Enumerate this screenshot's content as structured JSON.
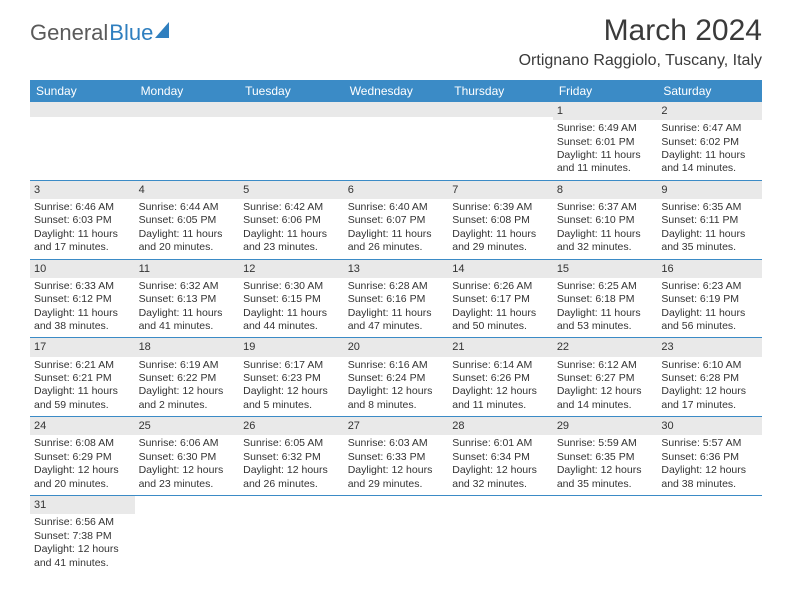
{
  "brand": {
    "part1": "General",
    "part2": "Blue"
  },
  "title": "March 2024",
  "location": "Ortignano Raggiolo, Tuscany, Italy",
  "colors": {
    "header_bg": "#3b8bc6",
    "header_text": "#ffffff",
    "daynum_bg": "#e9e9e9",
    "cell_border": "#3b8bc6",
    "text": "#333333",
    "brand_gray": "#5a5a5a",
    "brand_blue": "#2f7fbf",
    "page_bg": "#ffffff"
  },
  "weekdays": [
    "Sunday",
    "Monday",
    "Tuesday",
    "Wednesday",
    "Thursday",
    "Friday",
    "Saturday"
  ],
  "weeks": [
    [
      null,
      null,
      null,
      null,
      null,
      {
        "day": "1",
        "sunrise": "Sunrise: 6:49 AM",
        "sunset": "Sunset: 6:01 PM",
        "daylight": "Daylight: 11 hours and 11 minutes."
      },
      {
        "day": "2",
        "sunrise": "Sunrise: 6:47 AM",
        "sunset": "Sunset: 6:02 PM",
        "daylight": "Daylight: 11 hours and 14 minutes."
      }
    ],
    [
      {
        "day": "3",
        "sunrise": "Sunrise: 6:46 AM",
        "sunset": "Sunset: 6:03 PM",
        "daylight": "Daylight: 11 hours and 17 minutes."
      },
      {
        "day": "4",
        "sunrise": "Sunrise: 6:44 AM",
        "sunset": "Sunset: 6:05 PM",
        "daylight": "Daylight: 11 hours and 20 minutes."
      },
      {
        "day": "5",
        "sunrise": "Sunrise: 6:42 AM",
        "sunset": "Sunset: 6:06 PM",
        "daylight": "Daylight: 11 hours and 23 minutes."
      },
      {
        "day": "6",
        "sunrise": "Sunrise: 6:40 AM",
        "sunset": "Sunset: 6:07 PM",
        "daylight": "Daylight: 11 hours and 26 minutes."
      },
      {
        "day": "7",
        "sunrise": "Sunrise: 6:39 AM",
        "sunset": "Sunset: 6:08 PM",
        "daylight": "Daylight: 11 hours and 29 minutes."
      },
      {
        "day": "8",
        "sunrise": "Sunrise: 6:37 AM",
        "sunset": "Sunset: 6:10 PM",
        "daylight": "Daylight: 11 hours and 32 minutes."
      },
      {
        "day": "9",
        "sunrise": "Sunrise: 6:35 AM",
        "sunset": "Sunset: 6:11 PM",
        "daylight": "Daylight: 11 hours and 35 minutes."
      }
    ],
    [
      {
        "day": "10",
        "sunrise": "Sunrise: 6:33 AM",
        "sunset": "Sunset: 6:12 PM",
        "daylight": "Daylight: 11 hours and 38 minutes."
      },
      {
        "day": "11",
        "sunrise": "Sunrise: 6:32 AM",
        "sunset": "Sunset: 6:13 PM",
        "daylight": "Daylight: 11 hours and 41 minutes."
      },
      {
        "day": "12",
        "sunrise": "Sunrise: 6:30 AM",
        "sunset": "Sunset: 6:15 PM",
        "daylight": "Daylight: 11 hours and 44 minutes."
      },
      {
        "day": "13",
        "sunrise": "Sunrise: 6:28 AM",
        "sunset": "Sunset: 6:16 PM",
        "daylight": "Daylight: 11 hours and 47 minutes."
      },
      {
        "day": "14",
        "sunrise": "Sunrise: 6:26 AM",
        "sunset": "Sunset: 6:17 PM",
        "daylight": "Daylight: 11 hours and 50 minutes."
      },
      {
        "day": "15",
        "sunrise": "Sunrise: 6:25 AM",
        "sunset": "Sunset: 6:18 PM",
        "daylight": "Daylight: 11 hours and 53 minutes."
      },
      {
        "day": "16",
        "sunrise": "Sunrise: 6:23 AM",
        "sunset": "Sunset: 6:19 PM",
        "daylight": "Daylight: 11 hours and 56 minutes."
      }
    ],
    [
      {
        "day": "17",
        "sunrise": "Sunrise: 6:21 AM",
        "sunset": "Sunset: 6:21 PM",
        "daylight": "Daylight: 11 hours and 59 minutes."
      },
      {
        "day": "18",
        "sunrise": "Sunrise: 6:19 AM",
        "sunset": "Sunset: 6:22 PM",
        "daylight": "Daylight: 12 hours and 2 minutes."
      },
      {
        "day": "19",
        "sunrise": "Sunrise: 6:17 AM",
        "sunset": "Sunset: 6:23 PM",
        "daylight": "Daylight: 12 hours and 5 minutes."
      },
      {
        "day": "20",
        "sunrise": "Sunrise: 6:16 AM",
        "sunset": "Sunset: 6:24 PM",
        "daylight": "Daylight: 12 hours and 8 minutes."
      },
      {
        "day": "21",
        "sunrise": "Sunrise: 6:14 AM",
        "sunset": "Sunset: 6:26 PM",
        "daylight": "Daylight: 12 hours and 11 minutes."
      },
      {
        "day": "22",
        "sunrise": "Sunrise: 6:12 AM",
        "sunset": "Sunset: 6:27 PM",
        "daylight": "Daylight: 12 hours and 14 minutes."
      },
      {
        "day": "23",
        "sunrise": "Sunrise: 6:10 AM",
        "sunset": "Sunset: 6:28 PM",
        "daylight": "Daylight: 12 hours and 17 minutes."
      }
    ],
    [
      {
        "day": "24",
        "sunrise": "Sunrise: 6:08 AM",
        "sunset": "Sunset: 6:29 PM",
        "daylight": "Daylight: 12 hours and 20 minutes."
      },
      {
        "day": "25",
        "sunrise": "Sunrise: 6:06 AM",
        "sunset": "Sunset: 6:30 PM",
        "daylight": "Daylight: 12 hours and 23 minutes."
      },
      {
        "day": "26",
        "sunrise": "Sunrise: 6:05 AM",
        "sunset": "Sunset: 6:32 PM",
        "daylight": "Daylight: 12 hours and 26 minutes."
      },
      {
        "day": "27",
        "sunrise": "Sunrise: 6:03 AM",
        "sunset": "Sunset: 6:33 PM",
        "daylight": "Daylight: 12 hours and 29 minutes."
      },
      {
        "day": "28",
        "sunrise": "Sunrise: 6:01 AM",
        "sunset": "Sunset: 6:34 PM",
        "daylight": "Daylight: 12 hours and 32 minutes."
      },
      {
        "day": "29",
        "sunrise": "Sunrise: 5:59 AM",
        "sunset": "Sunset: 6:35 PM",
        "daylight": "Daylight: 12 hours and 35 minutes."
      },
      {
        "day": "30",
        "sunrise": "Sunrise: 5:57 AM",
        "sunset": "Sunset: 6:36 PM",
        "daylight": "Daylight: 12 hours and 38 minutes."
      }
    ],
    [
      {
        "day": "31",
        "sunrise": "Sunrise: 6:56 AM",
        "sunset": "Sunset: 7:38 PM",
        "daylight": "Daylight: 12 hours and 41 minutes."
      },
      null,
      null,
      null,
      null,
      null,
      null
    ]
  ]
}
